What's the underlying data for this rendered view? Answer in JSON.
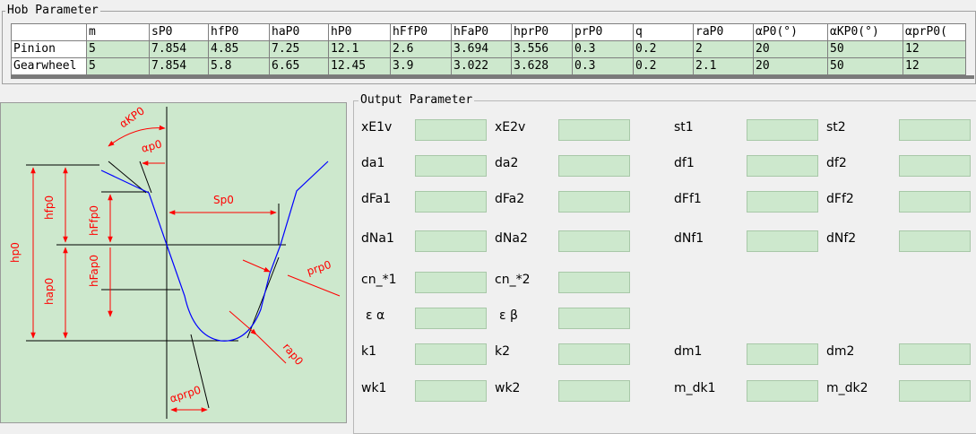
{
  "hob": {
    "title": "Hob Parameter",
    "columns": [
      "m",
      "sP0",
      "hfP0",
      "haP0",
      "hP0",
      "hFfP0",
      "hFaP0",
      "hprP0",
      "prP0",
      "q",
      "raP0",
      "αP0(°)",
      "αKP0(°)",
      "αprP0("
    ],
    "rows": [
      {
        "label": "Pinion",
        "values": [
          "5",
          "7.854",
          "4.85",
          "7.25",
          "12.1",
          "2.6",
          "3.694",
          "3.556",
          "0.3",
          "0.2",
          "2",
          "20",
          "50",
          "12"
        ]
      },
      {
        "label": "Gearwheel",
        "values": [
          "5",
          "7.854",
          "5.8",
          "6.65",
          "12.45",
          "3.9",
          "3.022",
          "3.628",
          "0.3",
          "0.2",
          "2.1",
          "20",
          "50",
          "12"
        ]
      }
    ]
  },
  "diagram": {
    "labels": {
      "akp0": "αKP0",
      "ap0": "αp0",
      "sp0": "Sp0",
      "hp0": "hp0",
      "hfp0": "hfp0",
      "hffp0": "hFfp0",
      "hfap0": "hFap0",
      "hap0": "hap0",
      "prp0": "prp0",
      "rap0": "rap0",
      "aprp0": "αprp0"
    }
  },
  "output": {
    "title": "Output Parameter",
    "labels": {
      "xe1v": "xE1v",
      "xe2v": "xE2v",
      "st1": "st1",
      "st2": "st2",
      "da1": "da1",
      "da2": "da2",
      "df1": "df1",
      "df2": "df2",
      "dfa1": "dFa1",
      "dfa2": "dFa2",
      "dff1": "dFf1",
      "dff2": "dFf2",
      "dna1": "dNa1",
      "dna2": "dNa2",
      "dnf1": "dNf1",
      "dnf2": "dNf2",
      "cn1": "cn_*1",
      "cn2": "cn_*2",
      "ea": "ε α",
      "eb": "ε β",
      "k1": "k1",
      "k2": "k2",
      "dm1": "dm1",
      "dm2": "dm2",
      "wk1": "wk1",
      "wk2": "wk2",
      "mdk1": "m_dk1",
      "mdk2": "m_dk2"
    }
  },
  "colors": {
    "field_green": "#cde8cd",
    "profile_blue": "#0000ff",
    "dim_red": "#ff0000"
  }
}
